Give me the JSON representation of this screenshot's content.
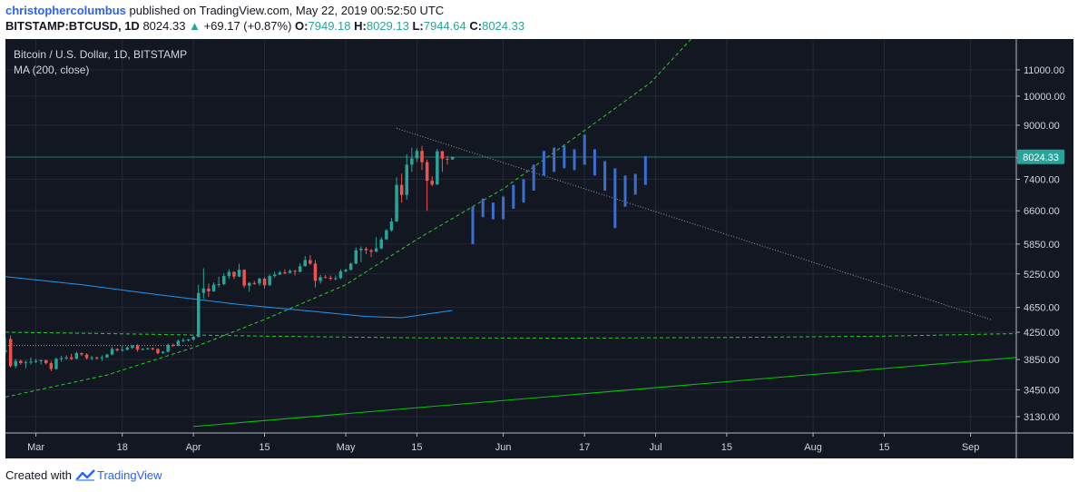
{
  "header": {
    "author": "christophercolumbus",
    "published": "published on TradingView.com, May 22, 2019 00:52:50 UTC",
    "symbol": "BITSTAMP:BTCUSD, 1D",
    "last": "8024.33",
    "change": "+69.17 (+0.87%)",
    "o_label": "O:",
    "o": "7949.18",
    "h_label": "H:",
    "h": "8029.13",
    "l_label": "L:",
    "l": "7944.64",
    "c_label": "C:",
    "c": "8024.33"
  },
  "legend": {
    "title": "Bitcoin / U.S. Dollar, 1D, BITSTAMP",
    "ma": "MA (200, close)"
  },
  "price_tag": "8024.33",
  "footer": {
    "created": "Created with",
    "brand": "TradingView"
  },
  "colors": {
    "background": "#131722",
    "up": "#26a69a",
    "down": "#ef5350",
    "ma": "#2196f3",
    "projection": "#3a6fd0",
    "support": "#00c800",
    "curve": "#23d123",
    "tag": "#26a69a"
  },
  "chart_data": {
    "type": "candlestick",
    "title": "Bitcoin / U.S. Dollar, 1D, BITSTAMP",
    "y_scale": "log",
    "ylim": [
      2950,
      12300
    ],
    "y_ticks": [
      "11000.00",
      "10000.00",
      "9000.00",
      "8000.00",
      "7400.00",
      "6600.00",
      "5850.00",
      "5250.00",
      "4650.00",
      "4250.00",
      "3850.00",
      "3450.00",
      "3130.00"
    ],
    "x_range": [
      "2019-02-23",
      "2019-09-10"
    ],
    "x_ticks": [
      {
        "date": "2019-03-01",
        "label": "Mar"
      },
      {
        "date": "2019-03-18",
        "label": "18"
      },
      {
        "date": "2019-04-01",
        "label": "Apr"
      },
      {
        "date": "2019-04-15",
        "label": "15"
      },
      {
        "date": "2019-05-01",
        "label": "May"
      },
      {
        "date": "2019-05-15",
        "label": "15"
      },
      {
        "date": "2019-06-01",
        "label": "Jun"
      },
      {
        "date": "2019-06-17",
        "label": "17"
      },
      {
        "date": "2019-07-01",
        "label": "Jul"
      },
      {
        "date": "2019-07-15",
        "label": "15"
      },
      {
        "date": "2019-08-01",
        "label": "Aug"
      },
      {
        "date": "2019-08-15",
        "label": "15"
      },
      {
        "date": "2019-09-01",
        "label": "Sep"
      }
    ],
    "candles": [
      {
        "d": "2019-02-23",
        "o": 3960,
        "h": 4170,
        "l": 3930,
        "c": 3980
      },
      {
        "d": "2019-02-24",
        "o": 4150,
        "h": 4200,
        "l": 3740,
        "c": 3760
      },
      {
        "d": "2019-02-25",
        "o": 3760,
        "h": 3860,
        "l": 3730,
        "c": 3830
      },
      {
        "d": "2019-02-26",
        "o": 3830,
        "h": 3850,
        "l": 3780,
        "c": 3800
      },
      {
        "d": "2019-02-27",
        "o": 3800,
        "h": 3840,
        "l": 3730,
        "c": 3810
      },
      {
        "d": "2019-02-28",
        "o": 3810,
        "h": 3880,
        "l": 3780,
        "c": 3820
      },
      {
        "d": "2019-03-01",
        "o": 3820,
        "h": 3860,
        "l": 3800,
        "c": 3830
      },
      {
        "d": "2019-03-02",
        "o": 3830,
        "h": 3850,
        "l": 3780,
        "c": 3840
      },
      {
        "d": "2019-03-03",
        "o": 3840,
        "h": 3850,
        "l": 3780,
        "c": 3800
      },
      {
        "d": "2019-03-04",
        "o": 3800,
        "h": 3830,
        "l": 3690,
        "c": 3720
      },
      {
        "d": "2019-03-05",
        "o": 3720,
        "h": 3880,
        "l": 3710,
        "c": 3860
      },
      {
        "d": "2019-03-06",
        "o": 3860,
        "h": 3900,
        "l": 3820,
        "c": 3870
      },
      {
        "d": "2019-03-07",
        "o": 3870,
        "h": 3910,
        "l": 3850,
        "c": 3880
      },
      {
        "d": "2019-03-08",
        "o": 3880,
        "h": 3930,
        "l": 3840,
        "c": 3860
      },
      {
        "d": "2019-03-09",
        "o": 3860,
        "h": 3960,
        "l": 3850,
        "c": 3940
      },
      {
        "d": "2019-03-10",
        "o": 3940,
        "h": 3950,
        "l": 3900,
        "c": 3920
      },
      {
        "d": "2019-03-11",
        "o": 3920,
        "h": 3940,
        "l": 3850,
        "c": 3870
      },
      {
        "d": "2019-03-12",
        "o": 3870,
        "h": 3900,
        "l": 3840,
        "c": 3880
      },
      {
        "d": "2019-03-13",
        "o": 3880,
        "h": 3890,
        "l": 3850,
        "c": 3870
      },
      {
        "d": "2019-03-14",
        "o": 3870,
        "h": 3910,
        "l": 3830,
        "c": 3880
      },
      {
        "d": "2019-03-15",
        "o": 3880,
        "h": 3930,
        "l": 3870,
        "c": 3920
      },
      {
        "d": "2019-03-16",
        "o": 3920,
        "h": 4030,
        "l": 3910,
        "c": 4000
      },
      {
        "d": "2019-03-17",
        "o": 4000,
        "h": 4010,
        "l": 3960,
        "c": 3980
      },
      {
        "d": "2019-03-18",
        "o": 3980,
        "h": 4040,
        "l": 3960,
        "c": 3990
      },
      {
        "d": "2019-03-19",
        "o": 3990,
        "h": 4040,
        "l": 3980,
        "c": 4020
      },
      {
        "d": "2019-03-20",
        "o": 4020,
        "h": 4060,
        "l": 4000,
        "c": 4050
      },
      {
        "d": "2019-03-21",
        "o": 4050,
        "h": 4070,
        "l": 3960,
        "c": 3990
      },
      {
        "d": "2019-03-22",
        "o": 3990,
        "h": 4010,
        "l": 3980,
        "c": 4000
      },
      {
        "d": "2019-03-23",
        "o": 4000,
        "h": 4020,
        "l": 3990,
        "c": 4010
      },
      {
        "d": "2019-03-24",
        "o": 4010,
        "h": 4020,
        "l": 3980,
        "c": 4000
      },
      {
        "d": "2019-03-25",
        "o": 4000,
        "h": 4010,
        "l": 3920,
        "c": 3940
      },
      {
        "d": "2019-03-26",
        "o": 3940,
        "h": 3970,
        "l": 3930,
        "c": 3960
      },
      {
        "d": "2019-03-27",
        "o": 3960,
        "h": 4080,
        "l": 3950,
        "c": 4060
      },
      {
        "d": "2019-03-28",
        "o": 4060,
        "h": 4080,
        "l": 4030,
        "c": 4050
      },
      {
        "d": "2019-03-29",
        "o": 4050,
        "h": 4140,
        "l": 4040,
        "c": 4120
      },
      {
        "d": "2019-03-30",
        "o": 4120,
        "h": 4160,
        "l": 4100,
        "c": 4130
      },
      {
        "d": "2019-03-31",
        "o": 4130,
        "h": 4150,
        "l": 4110,
        "c": 4140
      },
      {
        "d": "2019-04-01",
        "o": 4140,
        "h": 4200,
        "l": 4120,
        "c": 4180
      },
      {
        "d": "2019-04-02",
        "o": 4180,
        "h": 5050,
        "l": 4170,
        "c": 4900
      },
      {
        "d": "2019-04-03",
        "o": 4900,
        "h": 5360,
        "l": 4800,
        "c": 4980
      },
      {
        "d": "2019-04-04",
        "o": 4980,
        "h": 5070,
        "l": 4830,
        "c": 4930
      },
      {
        "d": "2019-04-05",
        "o": 4930,
        "h": 5090,
        "l": 4920,
        "c": 5050
      },
      {
        "d": "2019-04-06",
        "o": 5050,
        "h": 5200,
        "l": 5000,
        "c": 5060
      },
      {
        "d": "2019-04-07",
        "o": 5060,
        "h": 5260,
        "l": 5040,
        "c": 5210
      },
      {
        "d": "2019-04-08",
        "o": 5210,
        "h": 5340,
        "l": 5160,
        "c": 5290
      },
      {
        "d": "2019-04-09",
        "o": 5290,
        "h": 5300,
        "l": 5150,
        "c": 5200
      },
      {
        "d": "2019-04-10",
        "o": 5200,
        "h": 5450,
        "l": 5190,
        "c": 5330
      },
      {
        "d": "2019-04-11",
        "o": 5330,
        "h": 5340,
        "l": 4990,
        "c": 5030
      },
      {
        "d": "2019-04-12",
        "o": 5030,
        "h": 5100,
        "l": 4920,
        "c": 5080
      },
      {
        "d": "2019-04-13",
        "o": 5080,
        "h": 5120,
        "l": 5050,
        "c": 5070
      },
      {
        "d": "2019-04-14",
        "o": 5070,
        "h": 5180,
        "l": 5030,
        "c": 5160
      },
      {
        "d": "2019-04-15",
        "o": 5160,
        "h": 5190,
        "l": 4980,
        "c": 5040
      },
      {
        "d": "2019-04-16",
        "o": 5040,
        "h": 5240,
        "l": 5030,
        "c": 5210
      },
      {
        "d": "2019-04-17",
        "o": 5210,
        "h": 5290,
        "l": 5180,
        "c": 5240
      },
      {
        "d": "2019-04-18",
        "o": 5240,
        "h": 5310,
        "l": 5230,
        "c": 5280
      },
      {
        "d": "2019-04-19",
        "o": 5280,
        "h": 5340,
        "l": 5240,
        "c": 5270
      },
      {
        "d": "2019-04-20",
        "o": 5270,
        "h": 5340,
        "l": 5260,
        "c": 5310
      },
      {
        "d": "2019-04-21",
        "o": 5310,
        "h": 5330,
        "l": 5220,
        "c": 5290
      },
      {
        "d": "2019-04-22",
        "o": 5290,
        "h": 5460,
        "l": 5280,
        "c": 5400
      },
      {
        "d": "2019-04-23",
        "o": 5400,
        "h": 5600,
        "l": 5390,
        "c": 5520
      },
      {
        "d": "2019-04-24",
        "o": 5520,
        "h": 5620,
        "l": 5420,
        "c": 5450
      },
      {
        "d": "2019-04-25",
        "o": 5450,
        "h": 5520,
        "l": 5000,
        "c": 5120
      },
      {
        "d": "2019-04-26",
        "o": 5120,
        "h": 5230,
        "l": 5070,
        "c": 5190
      },
      {
        "d": "2019-04-27",
        "o": 5190,
        "h": 5230,
        "l": 5170,
        "c": 5180
      },
      {
        "d": "2019-04-28",
        "o": 5180,
        "h": 5220,
        "l": 5130,
        "c": 5160
      },
      {
        "d": "2019-04-29",
        "o": 5160,
        "h": 5220,
        "l": 5130,
        "c": 5170
      },
      {
        "d": "2019-04-30",
        "o": 5170,
        "h": 5340,
        "l": 5150,
        "c": 5300
      },
      {
        "d": "2019-05-01",
        "o": 5300,
        "h": 5350,
        "l": 5280,
        "c": 5330
      },
      {
        "d": "2019-05-02",
        "o": 5330,
        "h": 5470,
        "l": 5320,
        "c": 5450
      },
      {
        "d": "2019-05-03",
        "o": 5450,
        "h": 5780,
        "l": 5440,
        "c": 5720
      },
      {
        "d": "2019-05-04",
        "o": 5720,
        "h": 5800,
        "l": 5480,
        "c": 5750
      },
      {
        "d": "2019-05-05",
        "o": 5750,
        "h": 5790,
        "l": 5640,
        "c": 5720
      },
      {
        "d": "2019-05-06",
        "o": 5720,
        "h": 5750,
        "l": 5580,
        "c": 5690
      },
      {
        "d": "2019-05-07",
        "o": 5690,
        "h": 6000,
        "l": 5680,
        "c": 5760
      },
      {
        "d": "2019-05-08",
        "o": 5760,
        "h": 6000,
        "l": 5740,
        "c": 5950
      },
      {
        "d": "2019-05-09",
        "o": 5950,
        "h": 6180,
        "l": 5940,
        "c": 6150
      },
      {
        "d": "2019-05-10",
        "o": 6150,
        "h": 6430,
        "l": 6120,
        "c": 6350
      },
      {
        "d": "2019-05-11",
        "o": 6350,
        "h": 7450,
        "l": 6340,
        "c": 7250
      },
      {
        "d": "2019-05-12",
        "o": 7250,
        "h": 7550,
        "l": 6800,
        "c": 6990
      },
      {
        "d": "2019-05-13",
        "o": 6990,
        "h": 8100,
        "l": 6870,
        "c": 7800
      },
      {
        "d": "2019-05-14",
        "o": 7800,
        "h": 8300,
        "l": 7600,
        "c": 7980
      },
      {
        "d": "2019-05-15",
        "o": 7980,
        "h": 8280,
        "l": 7870,
        "c": 8200
      },
      {
        "d": "2019-05-16",
        "o": 8200,
        "h": 8350,
        "l": 7650,
        "c": 7870
      },
      {
        "d": "2019-05-17",
        "o": 7870,
        "h": 7950,
        "l": 6600,
        "c": 7360
      },
      {
        "d": "2019-05-18",
        "o": 7360,
        "h": 7480,
        "l": 7220,
        "c": 7260
      },
      {
        "d": "2019-05-19",
        "o": 7260,
        "h": 8260,
        "l": 7250,
        "c": 8190
      },
      {
        "d": "2019-05-20",
        "o": 8190,
        "h": 8200,
        "l": 7600,
        "c": 7970
      },
      {
        "d": "2019-05-21",
        "o": 7970,
        "h": 8050,
        "l": 7800,
        "c": 7950
      },
      {
        "d": "2019-05-22",
        "o": 7949.18,
        "h": 8029.13,
        "l": 7944.64,
        "c": 8024.33
      }
    ],
    "ma200": [
      {
        "d": "2019-02-23",
        "v": 5200
      },
      {
        "d": "2019-03-10",
        "v": 5050
      },
      {
        "d": "2019-03-25",
        "v": 4870
      },
      {
        "d": "2019-04-10",
        "v": 4700
      },
      {
        "d": "2019-04-25",
        "v": 4580
      },
      {
        "d": "2019-05-05",
        "v": 4500
      },
      {
        "d": "2019-05-12",
        "v": 4480
      },
      {
        "d": "2019-05-22",
        "v": 4600
      }
    ],
    "projection_bars": [
      {
        "d": "2019-05-26",
        "h": 6700,
        "l": 5850
      },
      {
        "d": "2019-05-28",
        "h": 6900,
        "l": 6450
      },
      {
        "d": "2019-05-30",
        "h": 6800,
        "l": 6400
      },
      {
        "d": "2019-06-01",
        "h": 6950,
        "l": 6400
      },
      {
        "d": "2019-06-03",
        "h": 7250,
        "l": 6650
      },
      {
        "d": "2019-06-05",
        "h": 7400,
        "l": 6800
      },
      {
        "d": "2019-06-07",
        "h": 7800,
        "l": 7100
      },
      {
        "d": "2019-06-09",
        "h": 8200,
        "l": 7500
      },
      {
        "d": "2019-06-11",
        "h": 8300,
        "l": 7600
      },
      {
        "d": "2019-06-13",
        "h": 8350,
        "l": 7700
      },
      {
        "d": "2019-06-15",
        "h": 8250,
        "l": 7650
      },
      {
        "d": "2019-06-17",
        "h": 8700,
        "l": 7800
      },
      {
        "d": "2019-06-19",
        "h": 8250,
        "l": 7500
      },
      {
        "d": "2019-06-21",
        "h": 7900,
        "l": 7100
      },
      {
        "d": "2019-06-23",
        "h": 7700,
        "l": 6200
      },
      {
        "d": "2019-06-25",
        "h": 7500,
        "l": 6700
      },
      {
        "d": "2019-06-27",
        "h": 7550,
        "l": 7000
      },
      {
        "d": "2019-06-29",
        "h": 8050,
        "l": 7250
      }
    ],
    "trendline": {
      "from": {
        "d": "2019-05-11",
        "v": 8900
      },
      "to": {
        "d": "2019-09-05",
        "v": 4450
      }
    },
    "support_line": {
      "from": {
        "d": "2019-04-01",
        "v": 3020
      },
      "to": {
        "d": "2019-09-10",
        "v": 3880
      }
    },
    "horizontal_level": 4110,
    "dotted_level": 4050,
    "price_line": 8024.33,
    "curve_low": [
      {
        "d": "2019-02-23",
        "v": 3360
      },
      {
        "d": "2019-03-15",
        "v": 3640
      },
      {
        "d": "2019-04-01",
        "v": 4020
      },
      {
        "d": "2019-04-15",
        "v": 4450
      },
      {
        "d": "2019-05-01",
        "v": 5050
      },
      {
        "d": "2019-05-15",
        "v": 5950
      },
      {
        "d": "2019-06-01",
        "v": 7150
      },
      {
        "d": "2019-06-15",
        "v": 8600
      },
      {
        "d": "2019-06-30",
        "v": 10500
      },
      {
        "d": "2019-07-08",
        "v": 12300
      }
    ],
    "curve_high": [
      {
        "d": "2019-02-23",
        "v": 4250
      },
      {
        "d": "2019-03-15",
        "v": 4230
      },
      {
        "d": "2019-04-15",
        "v": 4190
      },
      {
        "d": "2019-05-15",
        "v": 4165
      },
      {
        "d": "2019-06-15",
        "v": 4160
      },
      {
        "d": "2019-07-15",
        "v": 4170
      },
      {
        "d": "2019-08-15",
        "v": 4190
      },
      {
        "d": "2019-09-10",
        "v": 4230
      }
    ]
  }
}
